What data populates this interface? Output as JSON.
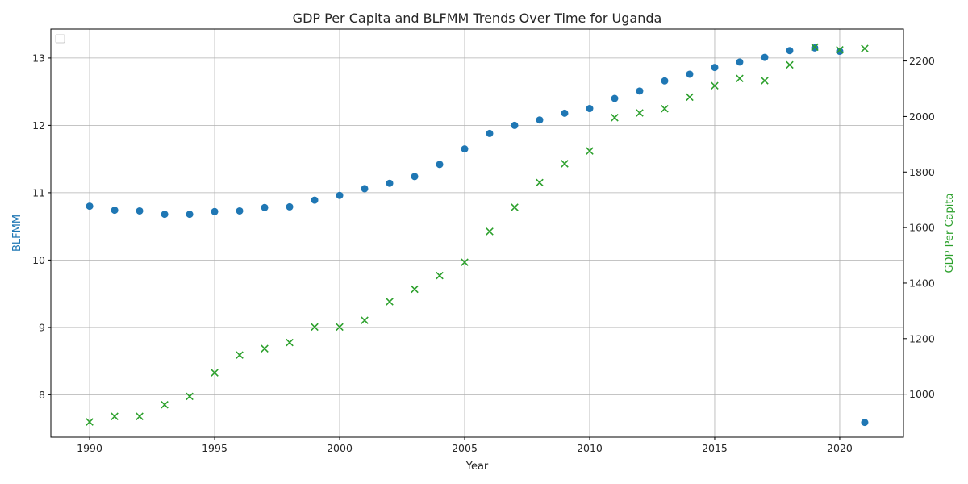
{
  "chart_data": {
    "type": "scatter",
    "title": "GDP Per Capita and BLFMM Trends Over Time for Uganda",
    "xlabel": "Year",
    "ylabel_left": "BLFMM",
    "ylabel_right": "GDP Per Capita",
    "xlim": [
      1988.45,
      2022.55
    ],
    "ylim_left": [
      7.37,
      13.43
    ],
    "ylim_right": [
      845,
      2315
    ],
    "x_ticks": [
      1990,
      1995,
      2000,
      2005,
      2010,
      2015,
      2020
    ],
    "y_ticks_left": [
      8,
      9,
      10,
      11,
      12,
      13
    ],
    "y_ticks_right": [
      1000,
      1200,
      1400,
      1600,
      1800,
      2000,
      2200
    ],
    "grid": true,
    "legend": "top-left, empty",
    "series": [
      {
        "name": "BLFMM",
        "axis": "left",
        "marker": "circle",
        "color": "#1f77b4",
        "x": [
          1990,
          1991,
          1992,
          1993,
          1994,
          1995,
          1996,
          1997,
          1998,
          1999,
          2000,
          2001,
          2002,
          2003,
          2004,
          2005,
          2006,
          2007,
          2008,
          2009,
          2010,
          2011,
          2012,
          2013,
          2014,
          2015,
          2016,
          2017,
          2018,
          2019,
          2020,
          2021
        ],
        "y": [
          10.8,
          10.74,
          10.73,
          10.68,
          10.68,
          10.72,
          10.73,
          10.78,
          10.79,
          10.89,
          10.96,
          11.06,
          11.14,
          11.24,
          11.42,
          11.65,
          11.88,
          12.0,
          12.08,
          12.18,
          12.25,
          12.4,
          12.51,
          12.66,
          12.76,
          12.86,
          12.94,
          13.01,
          13.11,
          13.15,
          13.1,
          7.59
        ]
      },
      {
        "name": "GDP Per Capita",
        "axis": "right",
        "marker": "x",
        "color": "#2ca02c",
        "x": [
          1990,
          1991,
          1992,
          1993,
          1994,
          1995,
          1996,
          1997,
          1998,
          1999,
          2000,
          2001,
          2002,
          2003,
          2004,
          2005,
          2006,
          2007,
          2008,
          2009,
          2010,
          2011,
          2012,
          2013,
          2014,
          2015,
          2016,
          2017,
          2018,
          2019,
          2020,
          2021
        ],
        "y": [
          900,
          920,
          920,
          962,
          992,
          1077,
          1141,
          1164,
          1186,
          1242,
          1242,
          1266,
          1333,
          1378,
          1427,
          1475,
          1586,
          1673,
          1762,
          1830,
          1876,
          1996,
          2013,
          2028,
          2070,
          2111,
          2137,
          2129,
          2186,
          2250,
          2240,
          2245
        ]
      }
    ]
  }
}
